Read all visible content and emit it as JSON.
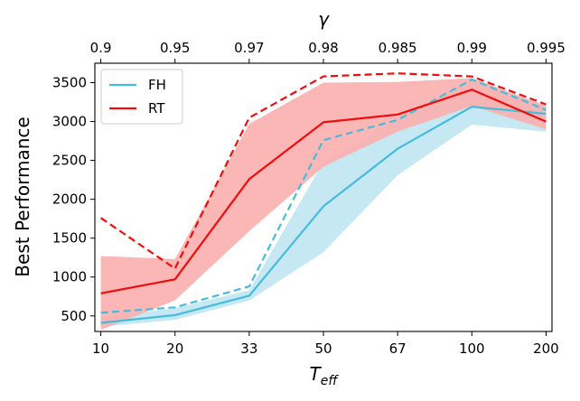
{
  "chart_data": {
    "type": "line",
    "title": "",
    "xlabel_main": "T",
    "xlabel_sub": "eff",
    "xlabel_top": "γ",
    "ylabel": "Best Performance",
    "x_categories": [
      "10",
      "20",
      "33",
      "50",
      "67",
      "100",
      "200"
    ],
    "x_top_categories": [
      "0.9",
      "0.95",
      "0.97",
      "0.98",
      "0.985",
      "0.99",
      "0.995"
    ],
    "x_positions": [
      0,
      1,
      2,
      3,
      4,
      5,
      6
    ],
    "x_range": [
      -0.08,
      6.08
    ],
    "ylim": [
      300,
      3750
    ],
    "y_ticks": [
      500,
      1000,
      1500,
      2000,
      2500,
      3000,
      3500
    ],
    "y_tick_labels": [
      "500",
      "1000",
      "1500",
      "2000",
      "2500",
      "3000",
      "3500"
    ],
    "legend_position": "top-left",
    "grid": false,
    "series": [
      {
        "name": "FH",
        "color": "#45BCDB",
        "fill_color": "#BFE6F2",
        "x": [
          0,
          1,
          2,
          3,
          4,
          5,
          6
        ],
        "mean": [
          410,
          510,
          760,
          1910,
          2650,
          3190,
          3100
        ],
        "band_low": [
          360,
          450,
          700,
          1320,
          2310,
          2960,
          2870
        ],
        "band_high": [
          480,
          600,
          830,
          2480,
          3030,
          3540,
          3210
        ],
        "max": [
          540,
          610,
          880,
          2760,
          3020,
          3540,
          3150
        ]
      },
      {
        "name": "RT",
        "color": "#EE0D0D",
        "fill_color": "#FBAEAE",
        "x": [
          0,
          1,
          2,
          3,
          4,
          5,
          6
        ],
        "mean": [
          790,
          970,
          2260,
          2990,
          3090,
          3410,
          3000
        ],
        "band_low": [
          320,
          700,
          1590,
          2420,
          2870,
          3200,
          2900
        ],
        "band_high": [
          1270,
          1230,
          2970,
          3500,
          3510,
          3560,
          3200
        ],
        "max": [
          1760,
          1110,
          3050,
          3580,
          3620,
          3580,
          3220
        ]
      }
    ]
  }
}
